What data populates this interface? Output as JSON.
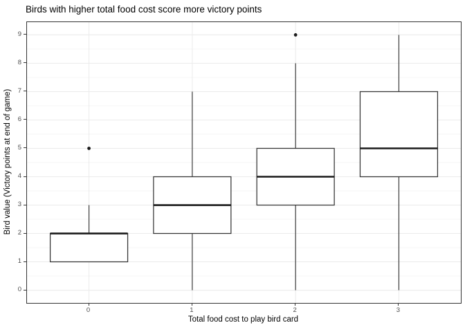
{
  "chart_data": {
    "type": "boxplot",
    "title": "Birds with higher total food cost score more victory points",
    "xlabel": "Total food cost to play bird card",
    "ylabel": "Bird value (Victory points at end of game)",
    "categories": [
      "0",
      "1",
      "2",
      "3"
    ],
    "y_ticks": [
      0,
      1,
      2,
      3,
      4,
      5,
      6,
      7,
      8,
      9
    ],
    "ylim": [
      -0.45,
      9.45
    ],
    "grid": "horizontal major at integers, horizontal minor at half-integers, vertical major at category centers",
    "legend_position": "none",
    "boxes": [
      {
        "category": "0",
        "whisker_low": 1,
        "q1": 1,
        "median": 2,
        "q3": 2,
        "whisker_high": 3,
        "outliers": [
          5
        ]
      },
      {
        "category": "1",
        "whisker_low": 0,
        "q1": 2,
        "median": 3,
        "q3": 4,
        "whisker_high": 7,
        "outliers": []
      },
      {
        "category": "2",
        "whisker_low": 0,
        "q1": 3,
        "median": 4,
        "q3": 5,
        "whisker_high": 8,
        "outliers": [
          9
        ]
      },
      {
        "category": "3",
        "whisker_low": 0,
        "q1": 4,
        "median": 5,
        "q3": 7,
        "whisker_high": 9,
        "outliers": []
      }
    ],
    "colors": {
      "background": "#ffffff",
      "panel_border": "#333333",
      "grid_major": "#ebebeb",
      "grid_minor": "#f5f5f5",
      "box_stroke": "#333333",
      "box_fill": "#ffffff",
      "median_line": "#1a1a1a",
      "outlier": "#1a1a1a",
      "tick_mark": "#333333",
      "tick_label": "#4d4d4d",
      "title_text": "#000000"
    }
  }
}
